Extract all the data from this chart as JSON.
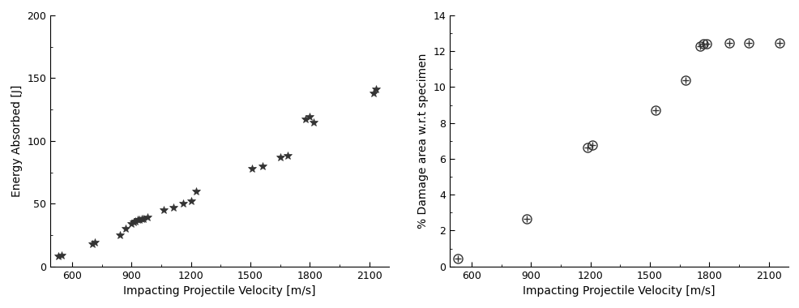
{
  "chart1": {
    "xlabel": "Impacting Projectile Velocity [m/s]",
    "ylabel": "Energy Absorbed [J]",
    "xlim": [
      490,
      2200
    ],
    "ylim": [
      0,
      200
    ],
    "xticks": [
      600,
      900,
      1200,
      1500,
      1800,
      2100
    ],
    "yticks": [
      0,
      50,
      100,
      150,
      200
    ],
    "x": [
      530,
      545,
      700,
      715,
      840,
      870,
      900,
      910,
      920,
      930,
      940,
      950,
      960,
      980,
      1060,
      1110,
      1160,
      1200,
      1225,
      1510,
      1560,
      1650,
      1690,
      1780,
      1800,
      1820,
      2120,
      2135
    ],
    "y": [
      8,
      9,
      18,
      19,
      25,
      30,
      34,
      35,
      36,
      37,
      37,
      38,
      38,
      39,
      45,
      47,
      50,
      52,
      60,
      78,
      80,
      87,
      88,
      117,
      119,
      115,
      138,
      141
    ],
    "markersize": 7,
    "color": "#333333"
  },
  "chart2": {
    "xlabel": "Impacting Projectile Velocity [m/s]",
    "ylabel": "% Damage area w.r.t specimen",
    "xlim": [
      490,
      2200
    ],
    "ylim": [
      0,
      14
    ],
    "xticks": [
      600,
      900,
      1200,
      1500,
      1800,
      2100
    ],
    "yticks": [
      0,
      2,
      4,
      6,
      8,
      10,
      12,
      14
    ],
    "x": [
      530,
      880,
      1185,
      1210,
      1530,
      1680,
      1755,
      1770,
      1785,
      1900,
      2000,
      2155
    ],
    "y": [
      0.45,
      2.65,
      6.65,
      6.75,
      8.7,
      10.4,
      12.3,
      12.4,
      12.4,
      12.45,
      12.45,
      12.45
    ],
    "markersize": 8,
    "color": "#333333"
  },
  "background_color": "#ffffff",
  "label_fontsize": 10,
  "tick_fontsize": 9,
  "fig_width": 9.87,
  "fig_height": 3.8
}
